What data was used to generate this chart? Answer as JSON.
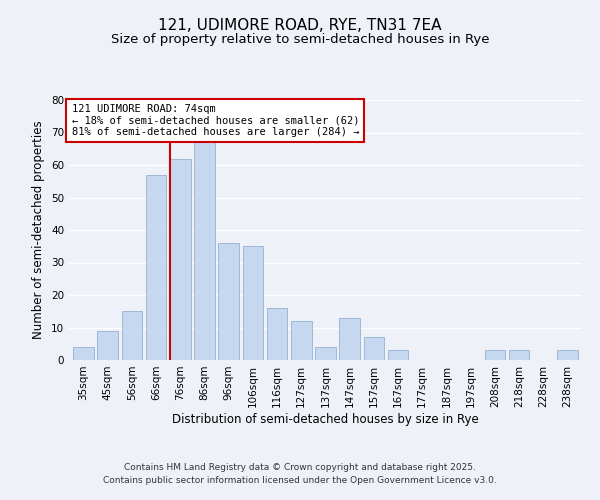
{
  "title": "121, UDIMORE ROAD, RYE, TN31 7EA",
  "subtitle": "Size of property relative to semi-detached houses in Rye",
  "xlabel": "Distribution of semi-detached houses by size in Rye",
  "ylabel": "Number of semi-detached properties",
  "categories": [
    "35sqm",
    "45sqm",
    "56sqm",
    "66sqm",
    "76sqm",
    "86sqm",
    "96sqm",
    "106sqm",
    "116sqm",
    "127sqm",
    "137sqm",
    "147sqm",
    "157sqm",
    "167sqm",
    "177sqm",
    "187sqm",
    "197sqm",
    "208sqm",
    "218sqm",
    "228sqm",
    "238sqm"
  ],
  "values": [
    4,
    9,
    15,
    57,
    62,
    67,
    36,
    35,
    16,
    12,
    4,
    13,
    7,
    3,
    0,
    0,
    0,
    3,
    3,
    0,
    3
  ],
  "bar_color": "#c5d8f0",
  "bar_edge_color": "#a0b8d8",
  "highlight_bar_index": 4,
  "highlight_line_color": "#cc0000",
  "annotation_line1": "121 UDIMORE ROAD: 74sqm",
  "annotation_line2": "← 18% of semi-detached houses are smaller (62)",
  "annotation_line3": "81% of semi-detached houses are larger (284) →",
  "annotation_box_edge_color": "#cc0000",
  "ylim": [
    0,
    80
  ],
  "yticks": [
    0,
    10,
    20,
    30,
    40,
    50,
    60,
    70,
    80
  ],
  "background_color": "#eef2f8",
  "footer_line1": "Contains HM Land Registry data © Crown copyright and database right 2025.",
  "footer_line2": "Contains public sector information licensed under the Open Government Licence v3.0.",
  "title_fontsize": 11,
  "subtitle_fontsize": 9.5,
  "axis_label_fontsize": 8.5,
  "tick_fontsize": 7.5,
  "annotation_fontsize": 7.5,
  "footer_fontsize": 6.5
}
